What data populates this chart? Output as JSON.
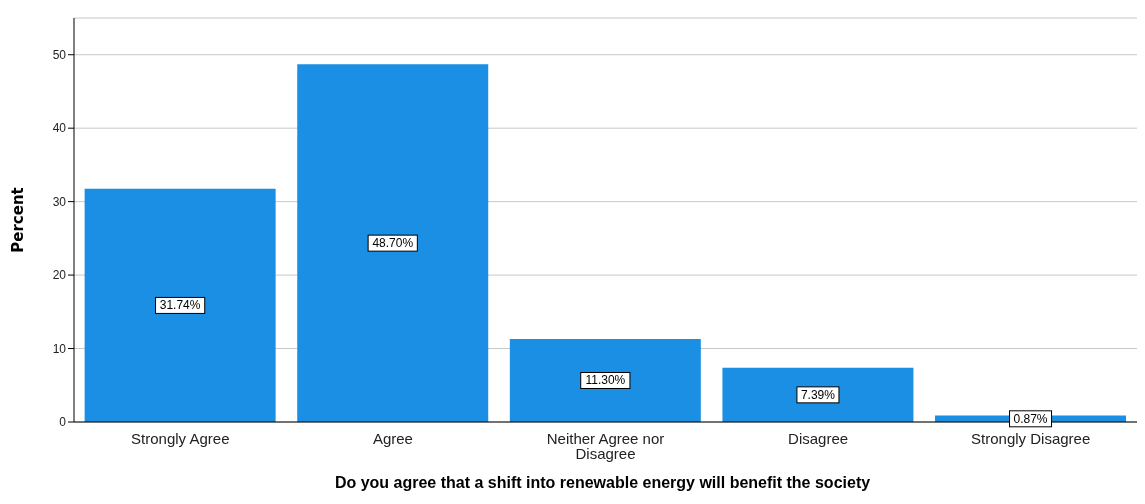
{
  "chart_data": {
    "type": "bar",
    "xlabel": "Do you agree that a shift into renewable energy will benefit the society",
    "ylabel": "Percent",
    "categories": [
      "Strongly Agree",
      "Agree",
      "Neither Agree nor Disagree",
      "Disagree",
      "Strongly Disagree"
    ],
    "values": [
      31.74,
      48.7,
      11.3,
      7.39,
      0.87
    ],
    "value_labels": [
      "31.74%",
      "48.70%",
      "11.30%",
      "7.39%",
      "0.87%"
    ],
    "color": "#1a8fe3",
    "ylim": [
      0,
      55
    ],
    "yticks": [
      0,
      10,
      20,
      30,
      40,
      50
    ],
    "grid": "y"
  }
}
